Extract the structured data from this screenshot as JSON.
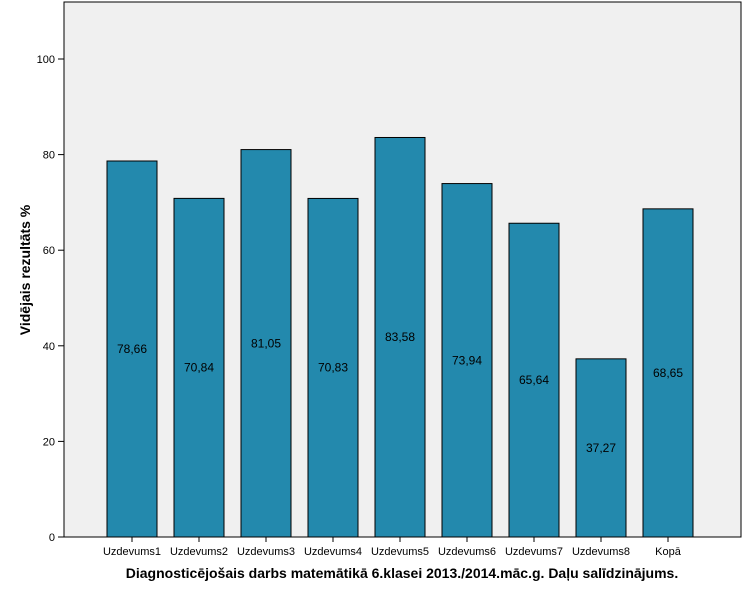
{
  "chart_data": {
    "type": "bar",
    "categories": [
      "Uzdevums1",
      "Uzdevums2",
      "Uzdevums3",
      "Uzdevums4",
      "Uzdevums5",
      "Uzdevums6",
      "Uzdevums7",
      "Uzdevums8",
      "Kopā"
    ],
    "values": [
      78.66,
      70.84,
      81.05,
      70.83,
      83.58,
      73.94,
      65.64,
      37.27,
      68.65
    ],
    "data_labels": [
      "78,66",
      "70,84",
      "81,05",
      "70,83",
      "83,58",
      "73,94",
      "65,64",
      "37,27",
      "68,65"
    ],
    "title": "",
    "xlabel": "Diagnosticējošais darbs matemātikā 6.klasei 2013./2014.māc.g. Daļu salīdzinājums.",
    "ylabel": "Vidējais rezultāts %",
    "ylim": [
      0,
      110
    ],
    "yticks": [
      0,
      20,
      40,
      60,
      80,
      100
    ],
    "grid": false,
    "legend": "none",
    "colors": {
      "bar": "#2389ad",
      "bar_edge": "#000000",
      "plot_background": "#f0f0f0"
    }
  }
}
